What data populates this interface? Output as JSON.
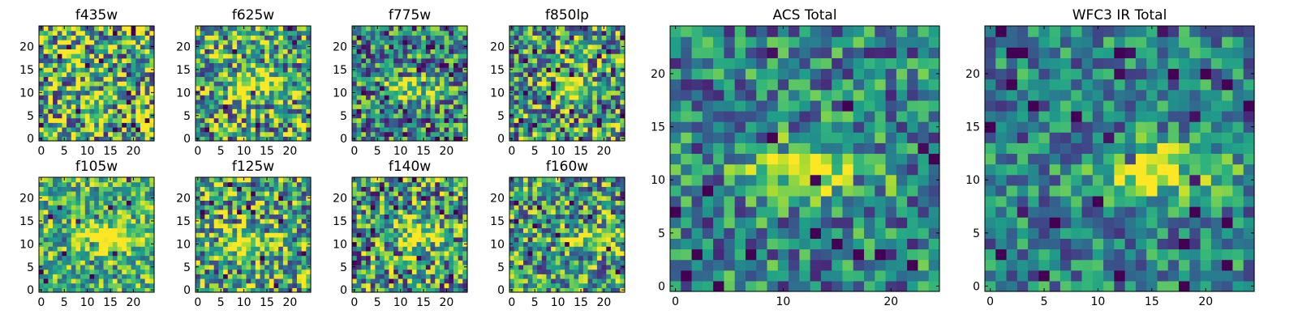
{
  "chart_data": [
    {
      "type": "heatmap",
      "title": "f435w",
      "xlim": [
        0,
        24
      ],
      "ylim": [
        0,
        24
      ],
      "xticks": [
        0,
        5,
        10,
        15,
        20
      ],
      "yticks": [
        0,
        5,
        10,
        15,
        20
      ],
      "colormap": "viridis",
      "hotspot": null,
      "noise": 0.55,
      "base": 0.65
    },
    {
      "type": "heatmap",
      "title": "f625w",
      "xlim": [
        0,
        24
      ],
      "ylim": [
        0,
        24
      ],
      "xticks": [
        0,
        5,
        10,
        15,
        20
      ],
      "yticks": [
        0,
        5,
        10,
        15,
        20
      ],
      "colormap": "viridis",
      "hotspot": [
        12,
        12
      ],
      "noise": 0.5,
      "base": 0.6
    },
    {
      "type": "heatmap",
      "title": "f775w",
      "xlim": [
        0,
        24
      ],
      "ylim": [
        0,
        24
      ],
      "xticks": [
        0,
        5,
        10,
        15,
        20
      ],
      "yticks": [
        0,
        5,
        10,
        15,
        20
      ],
      "colormap": "viridis",
      "hotspot": [
        13,
        11
      ],
      "noise": 0.45,
      "base": 0.45
    },
    {
      "type": "heatmap",
      "title": "f850lp",
      "xlim": [
        0,
        24
      ],
      "ylim": [
        0,
        24
      ],
      "xticks": [
        0,
        5,
        10,
        15,
        20
      ],
      "yticks": [
        0,
        5,
        10,
        15,
        20
      ],
      "colormap": "viridis",
      "hotspot": [
        13,
        11
      ],
      "noise": 0.5,
      "base": 0.55
    },
    {
      "type": "heatmap",
      "title": "f105w",
      "xlim": [
        0,
        24
      ],
      "ylim": [
        0,
        24
      ],
      "xticks": [
        0,
        5,
        10,
        15,
        20
      ],
      "yticks": [
        0,
        5,
        10,
        15,
        20
      ],
      "colormap": "viridis",
      "hotspot": [
        15,
        11
      ],
      "noise": 0.35,
      "base": 0.65
    },
    {
      "type": "heatmap",
      "title": "f125w",
      "xlim": [
        0,
        24
      ],
      "ylim": [
        0,
        24
      ],
      "xticks": [
        0,
        5,
        10,
        15,
        20
      ],
      "yticks": [
        0,
        5,
        10,
        15,
        20
      ],
      "colormap": "viridis",
      "hotspot": [
        10,
        10
      ],
      "noise": 0.5,
      "base": 0.6
    },
    {
      "type": "heatmap",
      "title": "f140w",
      "xlim": [
        0,
        24
      ],
      "ylim": [
        0,
        24
      ],
      "xticks": [
        0,
        5,
        10,
        15,
        20
      ],
      "yticks": [
        0,
        5,
        10,
        15,
        20
      ],
      "colormap": "viridis",
      "hotspot": [
        14,
        12
      ],
      "noise": 0.5,
      "base": 0.55
    },
    {
      "type": "heatmap",
      "title": "f160w",
      "xlim": [
        0,
        24
      ],
      "ylim": [
        0,
        24
      ],
      "xticks": [
        0,
        5,
        10,
        15,
        20
      ],
      "yticks": [
        0,
        5,
        10,
        15,
        20
      ],
      "colormap": "viridis",
      "hotspot": [
        19,
        11
      ],
      "noise": 0.45,
      "base": 0.55
    },
    {
      "type": "heatmap",
      "title": "ACS Total",
      "xlim": [
        0,
        24
      ],
      "ylim": [
        0,
        24
      ],
      "xticks": [
        0,
        10,
        20
      ],
      "yticks": [
        0,
        5,
        10,
        15,
        20
      ],
      "colormap": "viridis",
      "hotspot": [
        13,
        11
      ],
      "noise": 0.35,
      "base": 0.45
    },
    {
      "type": "heatmap",
      "title": "WFC3 IR Total",
      "xlim": [
        0,
        24
      ],
      "ylim": [
        0,
        24
      ],
      "xticks": [
        0,
        5,
        10,
        15,
        20
      ],
      "yticks": [
        0,
        5,
        10,
        15,
        20
      ],
      "colormap": "viridis",
      "hotspot": [
        16,
        11
      ],
      "noise": 0.3,
      "base": 0.45
    }
  ]
}
